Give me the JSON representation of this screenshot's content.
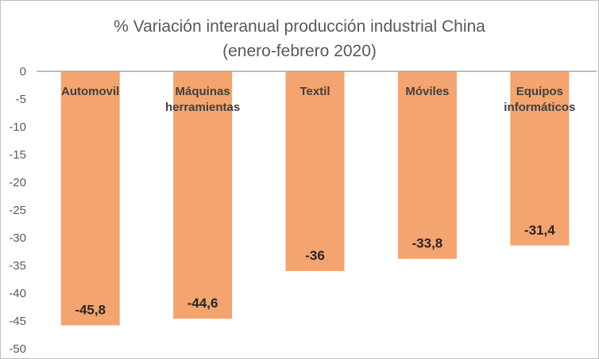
{
  "chart_data": {
    "type": "bar",
    "title": "% Variación interanual producción industrial China",
    "subtitle": "(enero-febrero 2020)",
    "categories": [
      [
        "Automovil"
      ],
      [
        "Máquinas",
        "herramientas"
      ],
      [
        "Textil"
      ],
      [
        "Móviles"
      ],
      [
        "Equipos",
        "informáticos"
      ]
    ],
    "values": [
      -45.8,
      -44.6,
      -36,
      -33.8,
      -31.4
    ],
    "value_labels": [
      "-45,8",
      "-44,6",
      "-36",
      "-33,8",
      "-31,4"
    ],
    "ylim": [
      -50,
      0
    ],
    "yticks": [
      0,
      -5,
      -10,
      -15,
      -20,
      -25,
      -30,
      -35,
      -40,
      -45,
      -50
    ],
    "ytick_labels": [
      "0",
      "-5",
      "-10",
      "-15",
      "-20",
      "-25",
      "-30",
      "-35",
      "-40",
      "-45",
      "-50"
    ],
    "grid": false,
    "legend": "none",
    "colors": {
      "bar": "#f4a46e",
      "axis": "#a6a6a6"
    }
  }
}
